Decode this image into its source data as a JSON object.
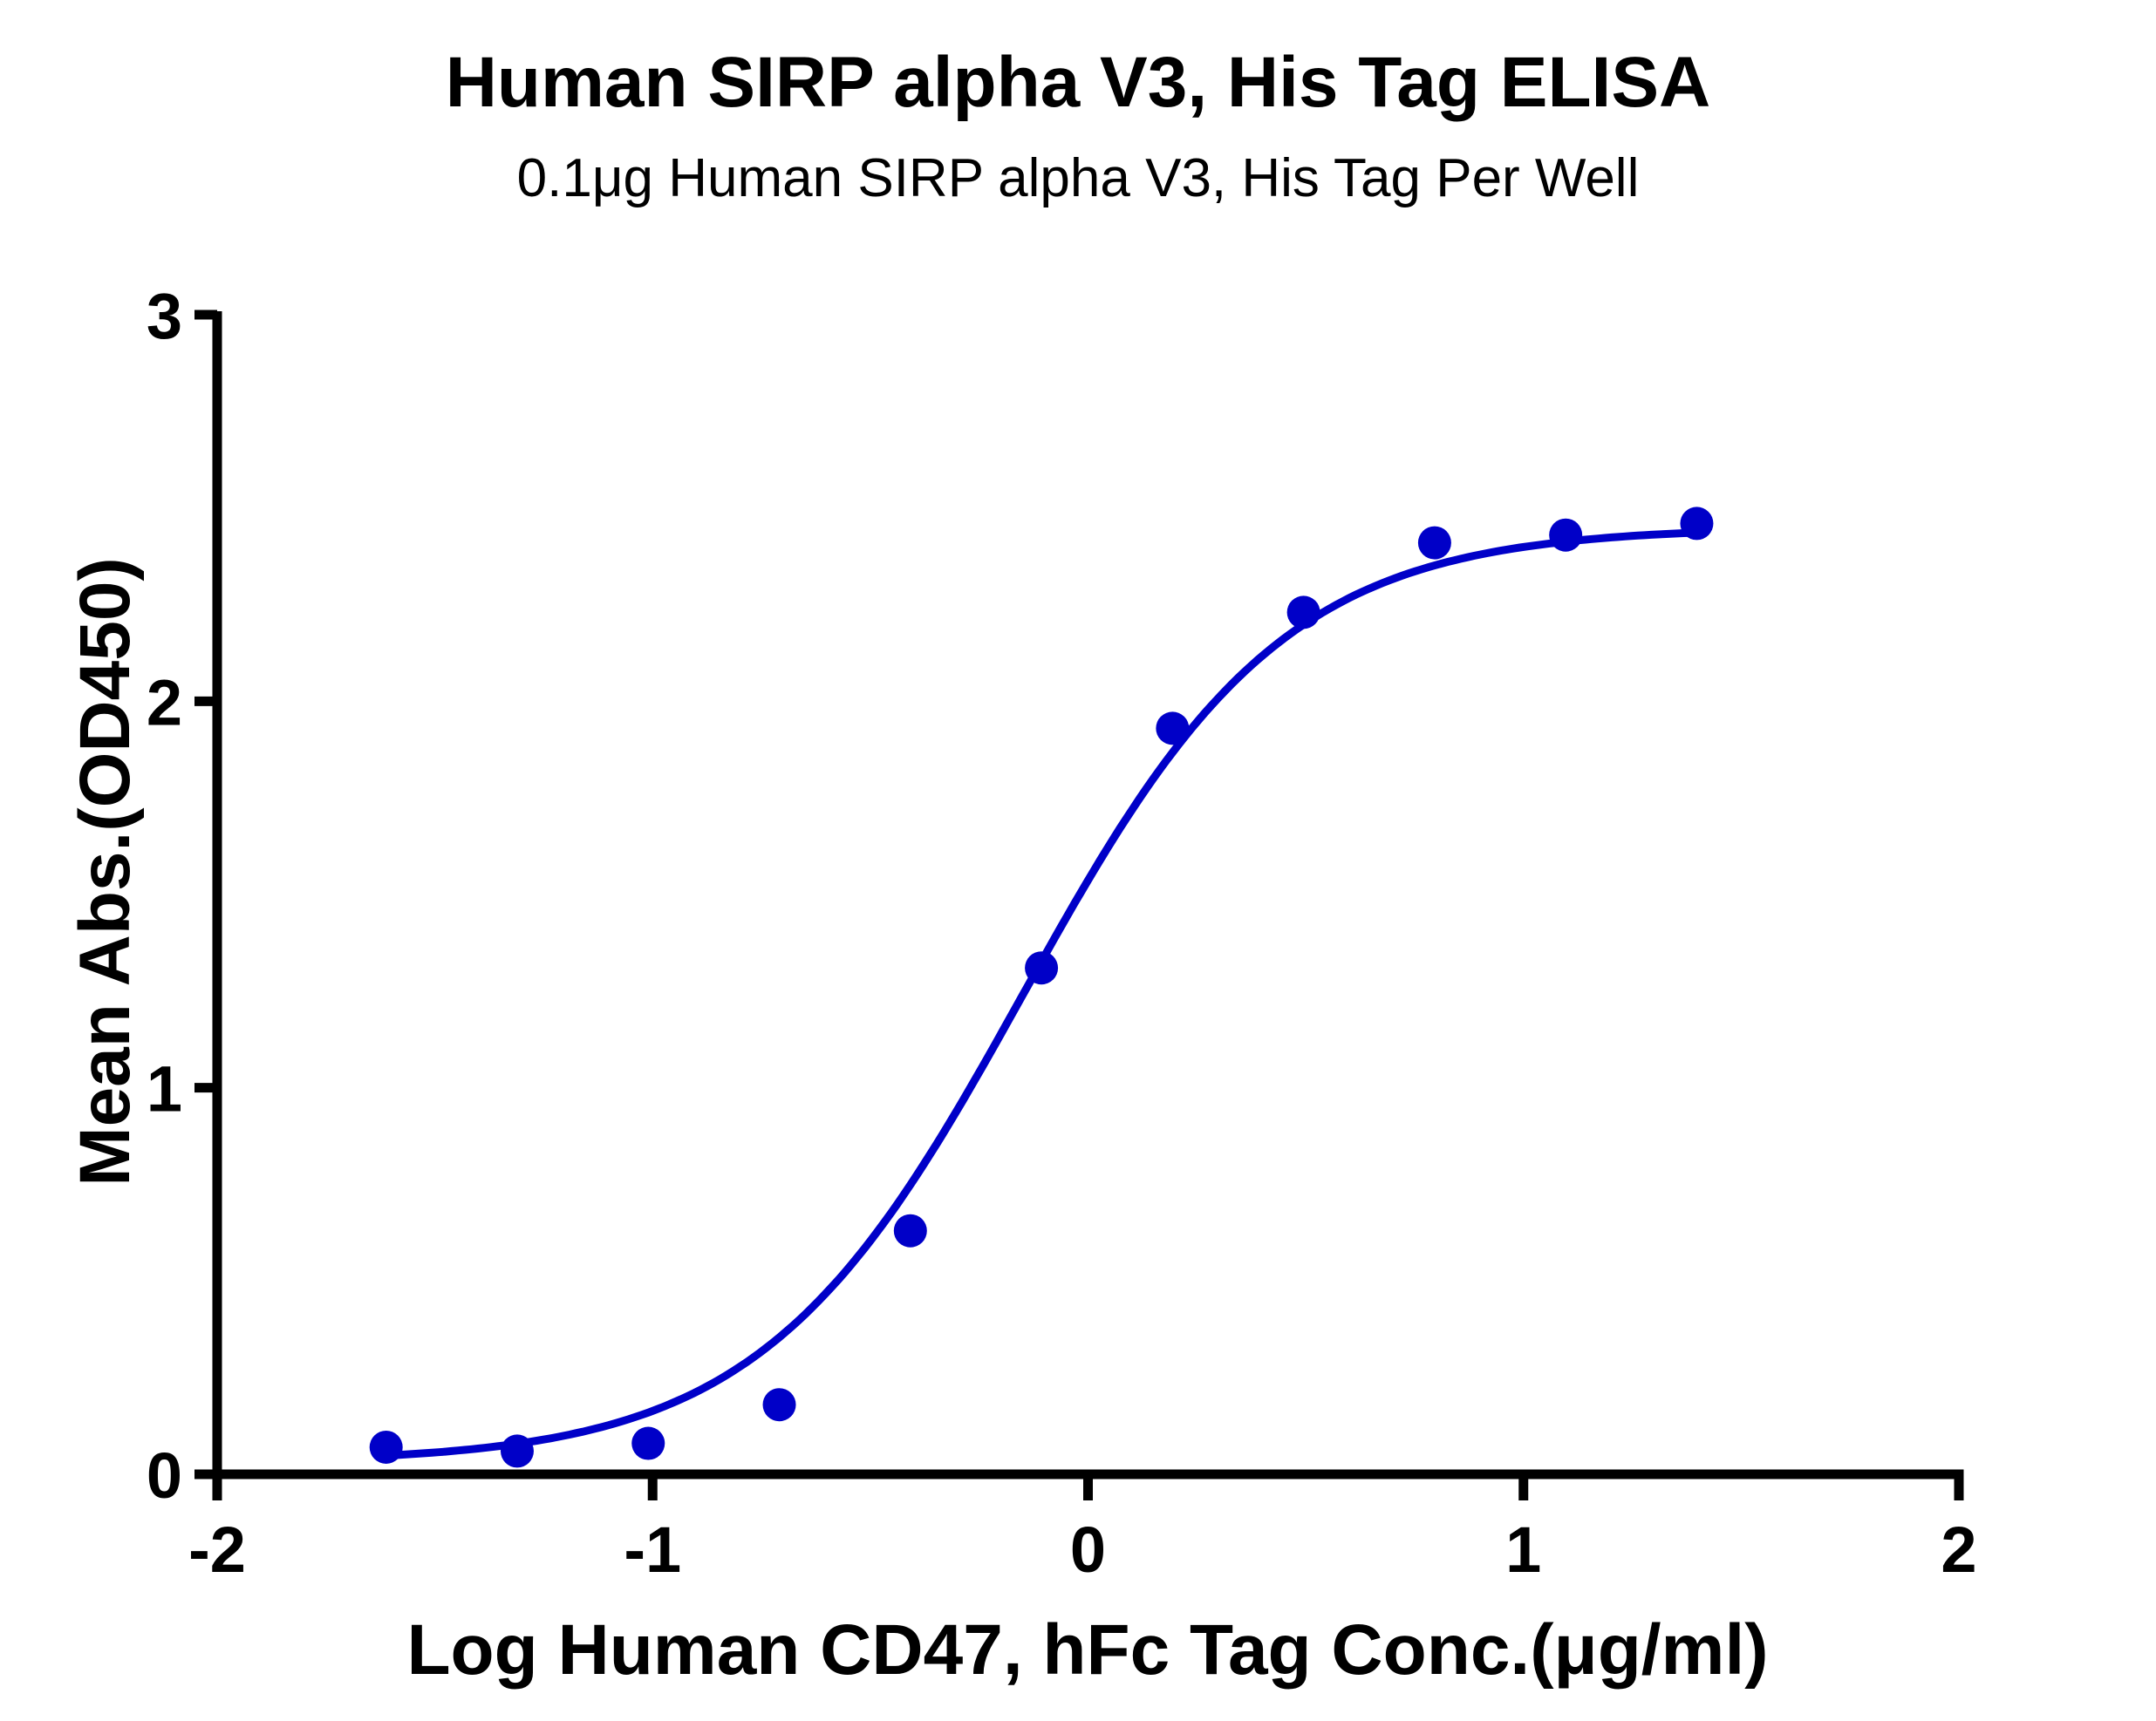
{
  "chart_data": {
    "type": "scatter",
    "title": "Human SIRP alpha V3, His Tag ELISA",
    "subtitle": "0.1μg Human SIRP alpha V3, His Tag Per Well",
    "xlabel": "Log Human CD47, hFc Tag Conc.(μg/ml)",
    "ylabel": "Mean Abs.(OD450)",
    "xlim": [
      -2,
      2
    ],
    "ylim": [
      0,
      3
    ],
    "xticks": [
      -2,
      -1,
      0,
      1,
      2
    ],
    "xtick_labels": [
      "-2",
      "-1",
      "0",
      "1",
      "2"
    ],
    "yticks": [
      0,
      1,
      2,
      3
    ],
    "ytick_labels": [
      "0",
      "1",
      "2",
      "3"
    ],
    "grid": false,
    "legend": null,
    "series": [
      {
        "name": "Human CD47, hFc Tag",
        "color": "#0000C8",
        "marker": "circle",
        "x": [
          -1.612,
          -1.311,
          -1.01,
          -0.709,
          -0.408,
          -0.107,
          0.194,
          0.495,
          0.796,
          1.097,
          1.398
        ],
        "y": [
          0.07,
          0.06,
          0.08,
          0.18,
          0.63,
          1.31,
          1.93,
          2.23,
          2.41,
          2.43,
          2.46
        ]
      }
    ],
    "fit": {
      "type": "4PL sigmoid",
      "color": "#0000C8",
      "bottom": 0.03,
      "top": 2.45,
      "logEC50": -0.15,
      "hill": 1.45
    }
  }
}
